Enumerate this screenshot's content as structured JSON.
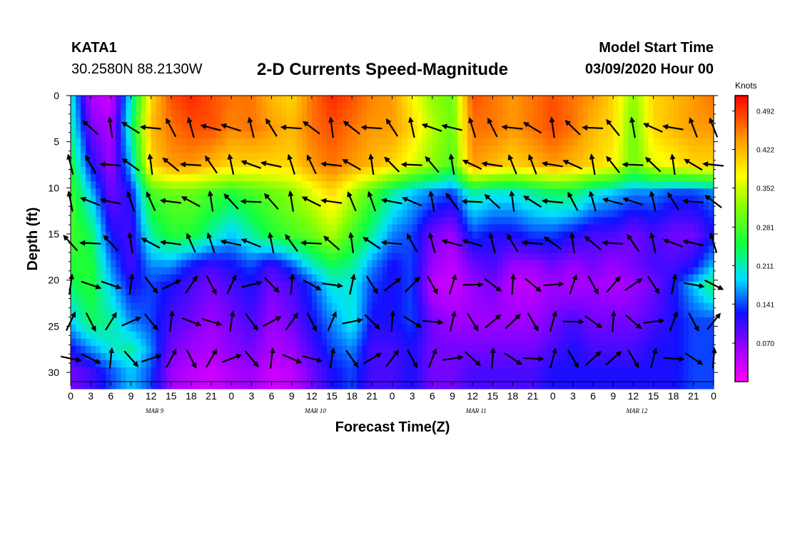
{
  "header": {
    "station": "KATA1",
    "coords": "30.2580N 88.2130W",
    "title": "2-D Currents Speed-Magnitude",
    "start_label": "Model Start Time",
    "start_time": "03/09/2020 Hour 00"
  },
  "chart_data": {
    "type": "heatmap",
    "title": "2-D Currents Speed-Magnitude",
    "xlabel": "Forecast Time(Z)",
    "ylabel": "Depth (ft)",
    "x_hours": [
      0,
      96
    ],
    "ylim": [
      0,
      31
    ],
    "x_tick_labels": [
      "0",
      "3",
      "6",
      "9",
      "12",
      "15",
      "18",
      "21",
      "0",
      "3",
      "6",
      "9",
      "12",
      "15",
      "18",
      "21",
      "0",
      "3",
      "6",
      "9",
      "12",
      "15",
      "18",
      "21",
      "0",
      "3",
      "6",
      "9",
      "12",
      "15",
      "18",
      "21",
      "0"
    ],
    "day_labels": [
      {
        "hour": 12,
        "label": "MAR 9"
      },
      {
        "hour": 36,
        "label": "MAR 10"
      },
      {
        "hour": 60,
        "label": "MAR 11"
      },
      {
        "hour": 84,
        "label": "MAR 12"
      }
    ],
    "y_ticks": [
      0,
      5,
      10,
      15,
      20,
      25,
      30
    ],
    "colorbar": {
      "title": "Knots",
      "range": [
        0,
        0.52
      ],
      "ticks": [
        "0.492",
        "0.422",
        "0.352",
        "0.281",
        "0.211",
        "0.141",
        "0.070"
      ],
      "tick_values": [
        0.492,
        0.422,
        0.352,
        0.281,
        0.211,
        0.141,
        0.07
      ]
    },
    "depth_levels": [
      0,
      3.5,
      7.5,
      10.5,
      15,
      18.5,
      20.5,
      24.5,
      27.5,
      30
    ],
    "speed_grid": {
      "hours": [
        0,
        3,
        6,
        9,
        12,
        15,
        18,
        21,
        24,
        27,
        30,
        33,
        36,
        39,
        42,
        45,
        48,
        51,
        54,
        57,
        60,
        63,
        66,
        69,
        72,
        75,
        78,
        81,
        84,
        87,
        90,
        93,
        96
      ],
      "values": [
        [
          0.2,
          0.05,
          0.03,
          0.2,
          0.4,
          0.48,
          0.5,
          0.48,
          0.46,
          0.46,
          0.42,
          0.4,
          0.46,
          0.5,
          0.48,
          0.45,
          0.44,
          0.38,
          0.32,
          0.3,
          0.48,
          0.46,
          0.44,
          0.46,
          0.48,
          0.46,
          0.44,
          0.4,
          0.32,
          0.4,
          0.42,
          0.44,
          0.46
        ],
        [
          0.22,
          0.08,
          0.05,
          0.22,
          0.42,
          0.46,
          0.48,
          0.48,
          0.45,
          0.46,
          0.44,
          0.42,
          0.46,
          0.48,
          0.46,
          0.44,
          0.44,
          0.4,
          0.34,
          0.3,
          0.46,
          0.46,
          0.44,
          0.46,
          0.48,
          0.46,
          0.42,
          0.4,
          0.3,
          0.4,
          0.42,
          0.44,
          0.44
        ],
        [
          0.26,
          0.12,
          0.06,
          0.18,
          0.4,
          0.44,
          0.44,
          0.42,
          0.4,
          0.4,
          0.4,
          0.4,
          0.44,
          0.46,
          0.44,
          0.42,
          0.4,
          0.36,
          0.32,
          0.28,
          0.44,
          0.42,
          0.4,
          0.42,
          0.44,
          0.42,
          0.4,
          0.38,
          0.3,
          0.36,
          0.38,
          0.4,
          0.4
        ],
        [
          0.28,
          0.18,
          0.08,
          0.12,
          0.28,
          0.3,
          0.3,
          0.28,
          0.26,
          0.28,
          0.3,
          0.32,
          0.36,
          0.4,
          0.34,
          0.28,
          0.22,
          0.18,
          0.16,
          0.14,
          0.22,
          0.2,
          0.2,
          0.22,
          0.24,
          0.24,
          0.2,
          0.18,
          0.16,
          0.16,
          0.14,
          0.14,
          0.16
        ],
        [
          0.28,
          0.24,
          0.12,
          0.1,
          0.22,
          0.26,
          0.26,
          0.22,
          0.18,
          0.22,
          0.26,
          0.28,
          0.3,
          0.34,
          0.28,
          0.22,
          0.16,
          0.14,
          0.08,
          0.06,
          0.14,
          0.12,
          0.12,
          0.14,
          0.14,
          0.12,
          0.1,
          0.1,
          0.08,
          0.1,
          0.08,
          0.08,
          0.12
        ],
        [
          0.26,
          0.26,
          0.16,
          0.1,
          0.16,
          0.16,
          0.12,
          0.1,
          0.12,
          0.14,
          0.1,
          0.14,
          0.2,
          0.24,
          0.22,
          0.16,
          0.12,
          0.14,
          0.06,
          0.04,
          0.08,
          0.1,
          0.06,
          0.06,
          0.08,
          0.06,
          0.08,
          0.06,
          0.08,
          0.1,
          0.1,
          0.12,
          0.18
        ],
        [
          0.24,
          0.26,
          0.18,
          0.12,
          0.14,
          0.12,
          0.1,
          0.08,
          0.1,
          0.12,
          0.08,
          0.1,
          0.14,
          0.2,
          0.2,
          0.14,
          0.12,
          0.14,
          0.04,
          0.03,
          0.06,
          0.08,
          0.04,
          0.04,
          0.06,
          0.05,
          0.06,
          0.05,
          0.06,
          0.08,
          0.12,
          0.18,
          0.24
        ],
        [
          0.18,
          0.24,
          0.22,
          0.16,
          0.14,
          0.1,
          0.08,
          0.06,
          0.08,
          0.1,
          0.06,
          0.08,
          0.12,
          0.16,
          0.2,
          0.12,
          0.12,
          0.14,
          0.08,
          0.06,
          0.06,
          0.06,
          0.06,
          0.06,
          0.08,
          0.1,
          0.08,
          0.08,
          0.08,
          0.1,
          0.12,
          0.14,
          0.14
        ],
        [
          0.12,
          0.16,
          0.2,
          0.22,
          0.16,
          0.08,
          0.06,
          0.05,
          0.07,
          0.08,
          0.05,
          0.06,
          0.1,
          0.14,
          0.16,
          0.1,
          0.1,
          0.12,
          0.08,
          0.08,
          0.08,
          0.08,
          0.08,
          0.08,
          0.1,
          0.12,
          0.1,
          0.1,
          0.1,
          0.12,
          0.12,
          0.14,
          0.14
        ],
        [
          0.08,
          0.1,
          0.14,
          0.18,
          0.14,
          0.06,
          0.04,
          0.03,
          0.05,
          0.06,
          0.03,
          0.04,
          0.08,
          0.12,
          0.14,
          0.1,
          0.1,
          0.12,
          0.08,
          0.08,
          0.1,
          0.1,
          0.1,
          0.1,
          0.12,
          0.12,
          0.12,
          0.12,
          0.12,
          0.12,
          0.12,
          0.14,
          0.14
        ]
      ]
    },
    "vector_rows": [
      {
        "depth": 3.5,
        "hours": [
          3,
          6,
          9,
          12,
          15,
          18,
          21,
          24,
          27,
          30,
          33,
          36,
          39,
          42,
          45,
          48,
          51,
          54,
          57,
          60,
          63,
          66,
          69,
          72,
          75,
          78,
          81,
          84,
          87,
          90,
          93,
          96
        ]
      },
      {
        "depth": 7.5,
        "hours": [
          0,
          3,
          6,
          9,
          12,
          15,
          18,
          21,
          24,
          27,
          30,
          33,
          36,
          39,
          42,
          45,
          48,
          51,
          54,
          57,
          60,
          63,
          66,
          69,
          72,
          75,
          78,
          81,
          84,
          87,
          90,
          93,
          96
        ]
      },
      {
        "depth": 11.5,
        "hours": [
          0,
          3,
          6,
          9,
          12,
          15,
          18,
          21,
          24,
          27,
          30,
          33,
          36,
          39,
          42,
          45,
          48,
          51,
          54,
          57,
          60,
          63,
          66,
          69,
          72,
          75,
          78,
          81,
          84,
          87,
          90,
          93,
          96
        ]
      },
      {
        "depth": 16,
        "hours": [
          0,
          3,
          6,
          9,
          12,
          15,
          18,
          21,
          24,
          27,
          30,
          33,
          36,
          39,
          42,
          45,
          48,
          51,
          54,
          57,
          60,
          63,
          66,
          69,
          72,
          75,
          78,
          81,
          84,
          87,
          90,
          93,
          96
        ]
      },
      {
        "depth": 20.5,
        "hours": [
          0,
          3,
          6,
          9,
          12,
          15,
          18,
          21,
          24,
          27,
          30,
          33,
          36,
          39,
          42,
          45,
          48,
          51,
          54,
          57,
          60,
          63,
          66,
          69,
          72,
          75,
          78,
          81,
          84,
          87,
          90,
          93,
          96
        ]
      },
      {
        "depth": 24.5,
        "hours": [
          0,
          3,
          6,
          9,
          12,
          15,
          18,
          21,
          24,
          27,
          30,
          33,
          36,
          39,
          42,
          45,
          48,
          51,
          54,
          57,
          60,
          63,
          66,
          69,
          72,
          75,
          78,
          81,
          84,
          87,
          90,
          93,
          96
        ]
      },
      {
        "depth": 28.5,
        "hours": [
          0,
          3,
          6,
          9,
          12,
          15,
          18,
          21,
          24,
          27,
          30,
          33,
          36,
          39,
          42,
          45,
          48,
          51,
          54,
          57,
          60,
          63,
          66,
          69,
          72,
          75,
          78,
          81,
          84,
          87,
          90,
          93,
          96
        ]
      }
    ]
  }
}
